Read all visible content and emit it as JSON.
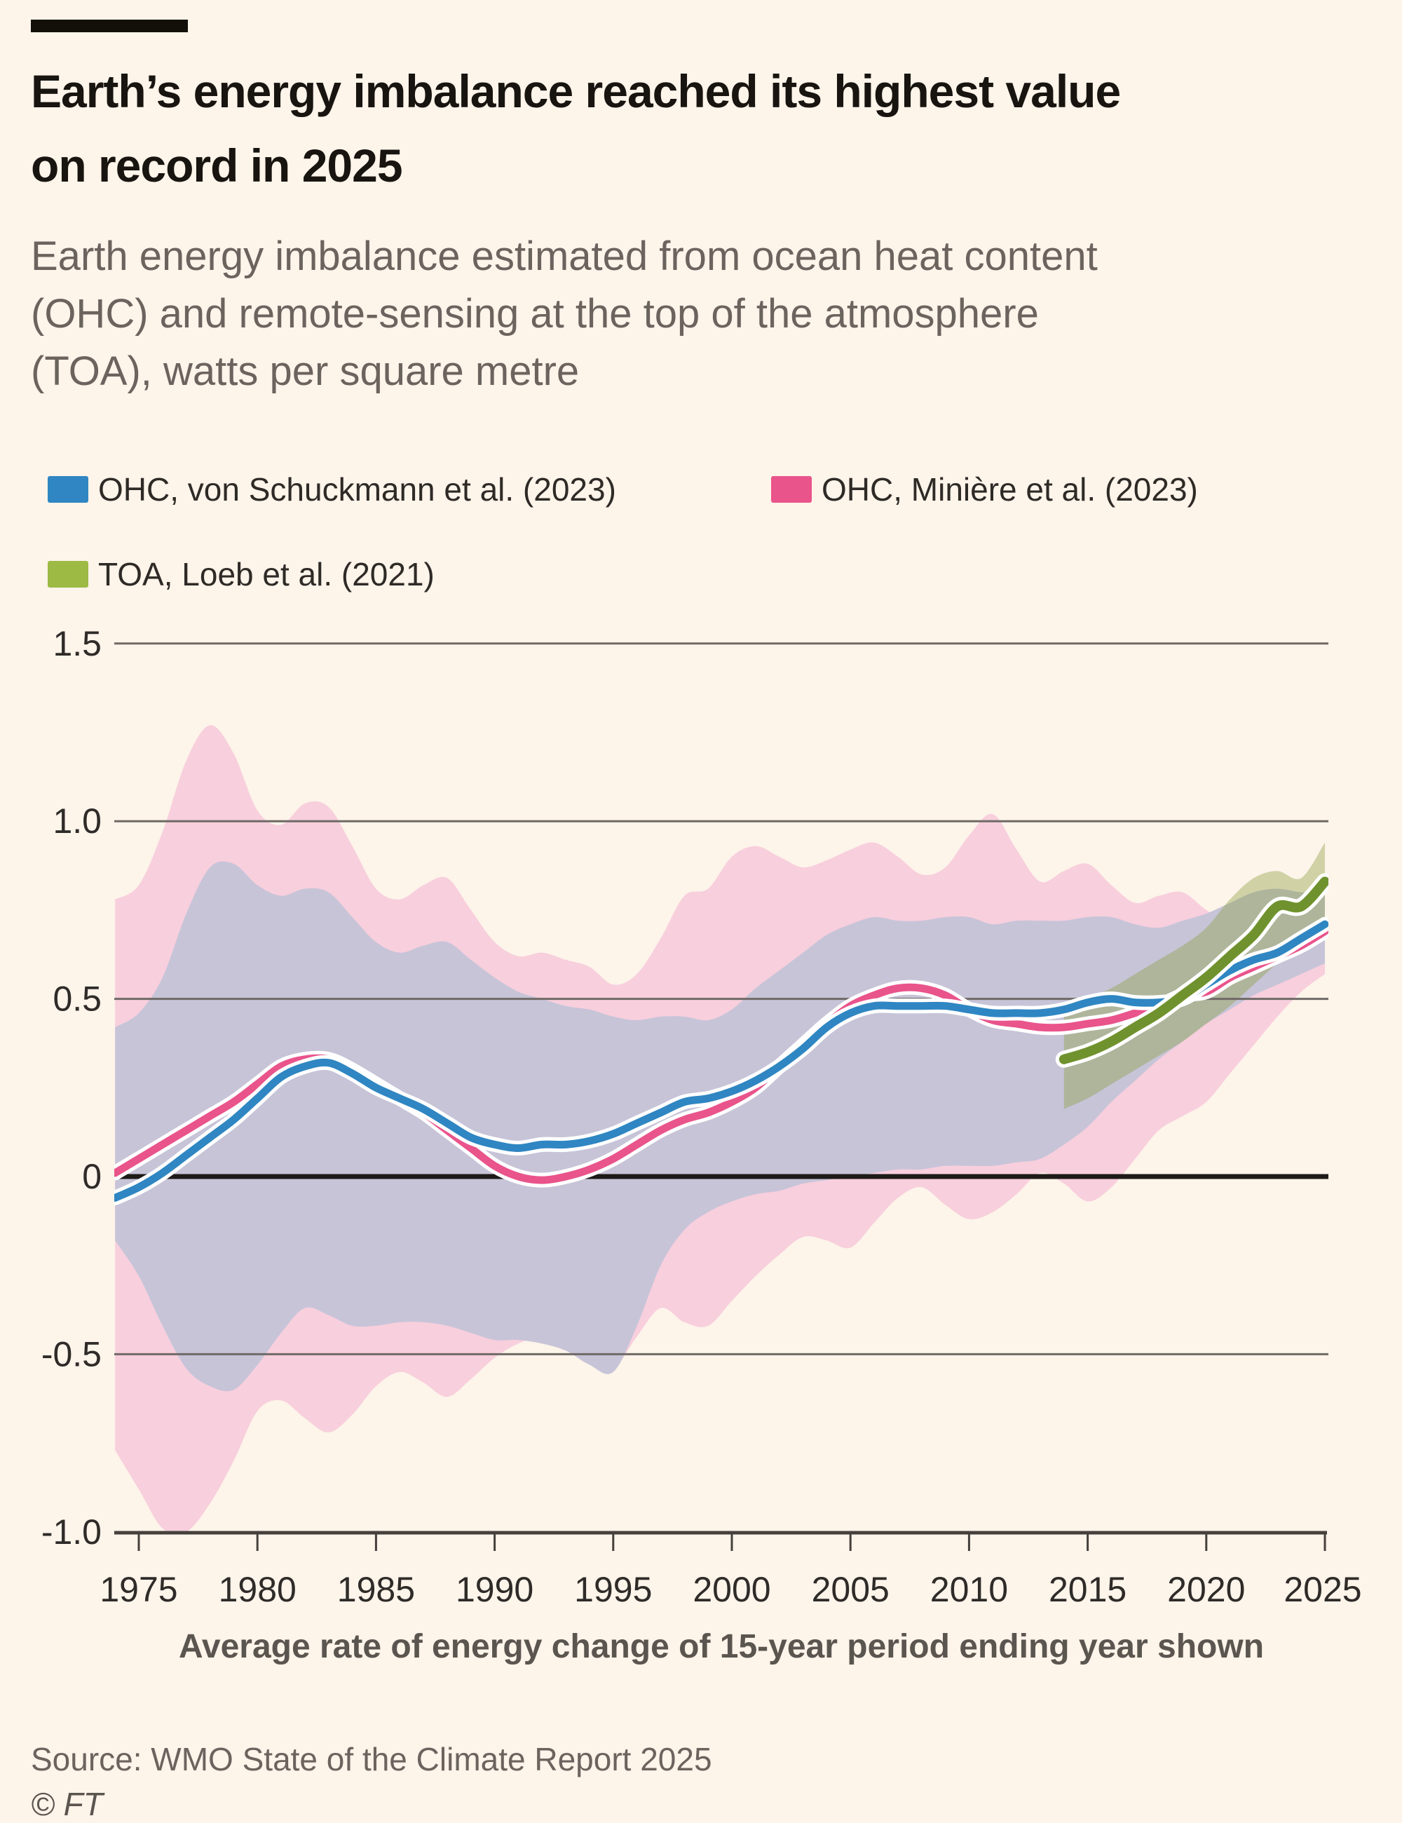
{
  "header": {
    "title_line1": "Earth’s energy imbalance reached its highest value",
    "title_line2": "on record in 2025",
    "subtitle_line1": "Earth energy imbalance estimated from ocean heat content",
    "subtitle_line2": "(OHC) and remote-sensing at the top of the atmosphere",
    "subtitle_line3": "(TOA), watts per square metre"
  },
  "legend": [
    {
      "label": "OHC, von Schuckmann et al. (2023)",
      "color": "#2f86c2"
    },
    {
      "label": "OHC, Minière et al. (2023)",
      "color": "#e9548b"
    },
    {
      "label": "TOA, Loeb et al. (2021)",
      "color": "#9cba44"
    }
  ],
  "footer": {
    "source": "Source: WMO State of the Climate Report 2025",
    "credit": "© FT"
  },
  "colors": {
    "background": "#fdf4ea",
    "gridline": "#6f6a66",
    "zero_line": "#1d1a17",
    "axis": "#45403c",
    "tick_text": "#2e2b28",
    "caption_text": "#5b5550",
    "blue_line": "#2f86c2",
    "blue_band": "#c7c4d8",
    "pink_line": "#e9548b",
    "pink_band": "#f8cfdd",
    "green_line": "#70922e",
    "green_band": "rgba(139,161,66,0.40)"
  },
  "chart_data": {
    "type": "line",
    "title": "Earth’s energy imbalance reached its highest value on record in 2025",
    "xlabel": "Average rate of energy change of 15-year period ending year shown",
    "ylabel": "watts per square metre",
    "xlim": [
      1974,
      2025
    ],
    "ylim": [
      -1.0,
      1.5
    ],
    "grid": "horizontal",
    "legend_position": "top",
    "x_ticks": [
      1975,
      1980,
      1985,
      1990,
      1995,
      2000,
      2005,
      2010,
      2015,
      2020,
      2025
    ],
    "y_ticks": [
      {
        "label": "1.5",
        "v": 1.5
      },
      {
        "label": "1.0",
        "v": 1.0
      },
      {
        "label": "0.5",
        "v": 0.5
      },
      {
        "label": "0",
        "v": 0.0
      },
      {
        "label": "-0.5",
        "v": -0.5
      },
      {
        "label": "-1.0",
        "v": -1.0
      }
    ],
    "years": [
      1974,
      1975,
      1976,
      1977,
      1978,
      1979,
      1980,
      1981,
      1982,
      1983,
      1984,
      1985,
      1986,
      1987,
      1988,
      1989,
      1990,
      1991,
      1992,
      1993,
      1994,
      1995,
      1996,
      1997,
      1998,
      1999,
      2000,
      2001,
      2002,
      2003,
      2004,
      2005,
      2006,
      2007,
      2008,
      2009,
      2010,
      2011,
      2012,
      2013,
      2014,
      2015,
      2016,
      2017,
      2018,
      2019,
      2020,
      2021,
      2022,
      2023,
      2024,
      2025
    ],
    "series": [
      {
        "name": "OHC, Minière et al. (2023)",
        "role": "pink",
        "values": [
          0.01,
          0.05,
          0.09,
          0.13,
          0.17,
          0.21,
          0.26,
          0.31,
          0.33,
          0.33,
          0.3,
          0.26,
          0.22,
          0.18,
          0.13,
          0.08,
          0.03,
          0.0,
          -0.01,
          0.0,
          0.02,
          0.05,
          0.09,
          0.13,
          0.16,
          0.18,
          0.21,
          0.25,
          0.31,
          0.37,
          0.43,
          0.48,
          0.51,
          0.53,
          0.53,
          0.51,
          0.47,
          0.44,
          0.43,
          0.42,
          0.42,
          0.43,
          0.44,
          0.46,
          0.48,
          0.51,
          0.52,
          0.56,
          0.59,
          0.62,
          0.65,
          0.69
        ],
        "band_upper": [
          0.78,
          0.82,
          0.97,
          1.17,
          1.27,
          1.19,
          1.03,
          0.99,
          1.05,
          1.04,
          0.93,
          0.81,
          0.78,
          0.82,
          0.84,
          0.75,
          0.66,
          0.62,
          0.63,
          0.61,
          0.59,
          0.54,
          0.57,
          0.67,
          0.79,
          0.81,
          0.9,
          0.93,
          0.9,
          0.87,
          0.89,
          0.92,
          0.94,
          0.9,
          0.85,
          0.87,
          0.96,
          1.02,
          0.92,
          0.83,
          0.86,
          0.88,
          0.82,
          0.77,
          0.79,
          0.8,
          0.75,
          0.71,
          0.69,
          0.68,
          0.66,
          0.68
        ],
        "band_lower": [
          -0.77,
          -0.88,
          -0.99,
          -1.0,
          -0.92,
          -0.8,
          -0.66,
          -0.63,
          -0.68,
          -0.72,
          -0.67,
          -0.59,
          -0.55,
          -0.58,
          -0.62,
          -0.57,
          -0.51,
          -0.47,
          -0.45,
          -0.48,
          -0.52,
          -0.54,
          -0.45,
          -0.37,
          -0.41,
          -0.42,
          -0.35,
          -0.28,
          -0.22,
          -0.17,
          -0.18,
          -0.2,
          -0.13,
          -0.06,
          -0.03,
          -0.08,
          -0.12,
          -0.1,
          -0.05,
          0.01,
          -0.02,
          -0.07,
          -0.03,
          0.05,
          0.13,
          0.17,
          0.21,
          0.29,
          0.37,
          0.45,
          0.52,
          0.57
        ]
      },
      {
        "name": "OHC, von Schuckmann et al. (2023)",
        "role": "blue",
        "values": [
          -0.06,
          -0.03,
          0.01,
          0.06,
          0.11,
          0.16,
          0.22,
          0.28,
          0.31,
          0.32,
          0.29,
          0.25,
          0.22,
          0.19,
          0.15,
          0.11,
          0.09,
          0.08,
          0.09,
          0.09,
          0.1,
          0.12,
          0.15,
          0.18,
          0.21,
          0.22,
          0.24,
          0.27,
          0.31,
          0.36,
          0.42,
          0.46,
          0.48,
          0.48,
          0.48,
          0.48,
          0.47,
          0.46,
          0.46,
          0.46,
          0.47,
          0.49,
          0.5,
          0.49,
          0.49,
          0.5,
          0.54,
          0.58,
          0.61,
          0.63,
          0.67,
          0.71
        ],
        "band_upper": [
          0.42,
          0.46,
          0.56,
          0.74,
          0.87,
          0.88,
          0.82,
          0.79,
          0.81,
          0.8,
          0.73,
          0.66,
          0.63,
          0.65,
          0.66,
          0.61,
          0.56,
          0.52,
          0.5,
          0.48,
          0.47,
          0.45,
          0.44,
          0.45,
          0.45,
          0.44,
          0.47,
          0.53,
          0.58,
          0.63,
          0.68,
          0.71,
          0.73,
          0.72,
          0.72,
          0.73,
          0.73,
          0.71,
          0.72,
          0.72,
          0.72,
          0.73,
          0.73,
          0.71,
          0.7,
          0.72,
          0.74,
          0.77,
          0.8,
          0.81,
          0.8,
          0.8
        ],
        "band_lower": [
          -0.18,
          -0.28,
          -0.42,
          -0.54,
          -0.59,
          -0.6,
          -0.53,
          -0.44,
          -0.37,
          -0.39,
          -0.42,
          -0.42,
          -0.41,
          -0.41,
          -0.42,
          -0.44,
          -0.46,
          -0.46,
          -0.47,
          -0.49,
          -0.53,
          -0.55,
          -0.42,
          -0.25,
          -0.15,
          -0.1,
          -0.07,
          -0.05,
          -0.04,
          -0.02,
          -0.01,
          0.0,
          0.01,
          0.02,
          0.02,
          0.03,
          0.03,
          0.03,
          0.04,
          0.05,
          0.09,
          0.14,
          0.21,
          0.27,
          0.33,
          0.38,
          0.43,
          0.47,
          0.51,
          0.54,
          0.57,
          0.6
        ]
      },
      {
        "name": "TOA, Loeb et al. (2021)",
        "role": "green",
        "years": [
          2014,
          2015,
          2016,
          2017,
          2018,
          2019,
          2020,
          2021,
          2022,
          2023,
          2024,
          2025
        ],
        "values": [
          0.33,
          0.35,
          0.38,
          0.42,
          0.46,
          0.51,
          0.56,
          0.62,
          0.68,
          0.76,
          0.76,
          0.83
        ],
        "band_upper": [
          0.46,
          0.5,
          0.53,
          0.57,
          0.61,
          0.65,
          0.7,
          0.78,
          0.84,
          0.86,
          0.84,
          0.94
        ],
        "band_lower": [
          0.19,
          0.22,
          0.26,
          0.3,
          0.34,
          0.38,
          0.43,
          0.48,
          0.54,
          0.6,
          0.65,
          0.72
        ]
      }
    ]
  }
}
